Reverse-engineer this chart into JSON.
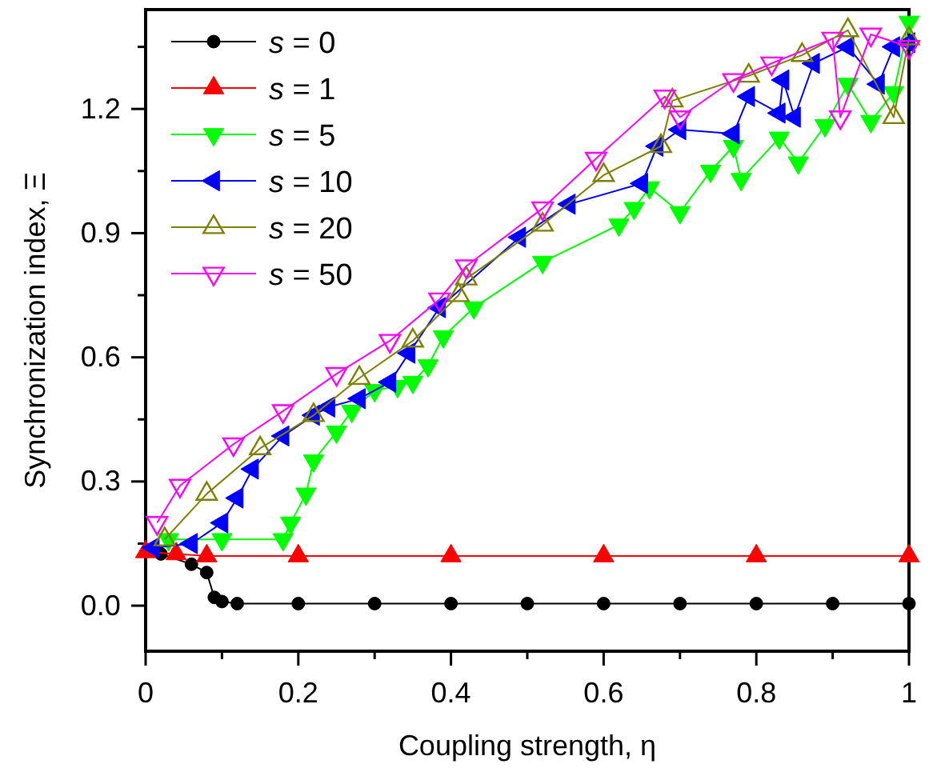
{
  "chart_data": {
    "type": "line",
    "xlabel": "Coupling strength, η",
    "ylabel": "Synchronization index, Ξ",
    "xlim": [
      0,
      1
    ],
    "ylim": [
      -0.11,
      1.44
    ],
    "xticks": [
      0,
      {
        "value": 0.1,
        "label": null
      },
      0.2,
      {
        "value": 0.3,
        "label": null
      },
      0.4,
      {
        "value": 0.5,
        "label": null
      },
      0.6,
      {
        "value": 0.7,
        "label": null
      },
      0.8,
      {
        "value": 0.9,
        "label": null
      },
      1
    ],
    "yticks": [
      {
        "value": 0,
        "label": "0.0"
      },
      {
        "value": 0.15,
        "label": null
      },
      0.3,
      {
        "value": 0.45,
        "label": null
      },
      0.6,
      {
        "value": 0.75,
        "label": null
      },
      0.9,
      {
        "value": 1.05,
        "label": null
      },
      1.2,
      {
        "value": 1.35,
        "label": null
      }
    ],
    "legend": "top left",
    "grid": false,
    "line_style": "solid",
    "series": [
      {
        "name": "s = 0",
        "color": "#000000",
        "marker": "circle",
        "x": [
          0.02,
          0.06,
          0.08,
          0.09,
          0.1,
          0.12,
          0.2,
          0.3,
          0.4,
          0.5,
          0.6,
          0.7,
          0.8,
          0.9,
          1
        ],
        "values": [
          0.125,
          0.1,
          0.08,
          0.02,
          0.01,
          0.005,
          0.005,
          0.005,
          0.005,
          0.005,
          0.005,
          0.005,
          0.005,
          0.005,
          0.005
        ]
      },
      {
        "name": "s = 1",
        "color": "#ff0000",
        "marker": "triangle",
        "x": [
          0,
          0.04,
          0.08,
          0.2,
          0.4,
          0.6,
          0.8,
          1
        ],
        "values": [
          0.13,
          0.125,
          0.12,
          0.12,
          0.12,
          0.12,
          0.12,
          0.12
        ]
      },
      {
        "name": "s = 5",
        "color": "#00ff00",
        "marker": "triangle-down",
        "x": [
          0.03,
          0.1,
          0.18,
          0.19,
          0.21,
          0.22,
          0.25,
          0.27,
          0.3,
          0.33,
          0.35,
          0.37,
          0.39,
          0.43,
          0.52,
          0.62,
          0.64,
          0.66,
          0.7,
          0.74,
          0.77,
          0.78,
          0.83,
          0.855,
          0.89,
          0.92,
          0.95,
          0.98,
          1
        ],
        "values": [
          0.16,
          0.16,
          0.16,
          0.2,
          0.27,
          0.35,
          0.42,
          0.47,
          0.52,
          0.53,
          0.54,
          0.58,
          0.65,
          0.72,
          0.83,
          0.92,
          0.96,
          1.01,
          0.95,
          1.05,
          1.11,
          1.03,
          1.13,
          1.07,
          1.16,
          1.26,
          1.17,
          1.24,
          1.41
        ]
      },
      {
        "name": "s = 10",
        "color": "#0000ff",
        "marker": "triangle-left",
        "x": [
          0.01,
          0.06,
          0.1,
          0.12,
          0.14,
          0.18,
          0.22,
          0.24,
          0.28,
          0.32,
          0.345,
          0.385,
          0.49,
          0.555,
          0.65,
          0.67,
          0.7,
          0.77,
          0.79,
          0.83,
          0.835,
          0.85,
          0.875,
          0.92,
          0.96,
          0.98,
          1
        ],
        "values": [
          0.14,
          0.15,
          0.2,
          0.26,
          0.33,
          0.41,
          0.46,
          0.48,
          0.5,
          0.54,
          0.61,
          0.72,
          0.89,
          0.97,
          1.02,
          1.11,
          1.15,
          1.14,
          1.23,
          1.19,
          1.27,
          1.18,
          1.31,
          1.35,
          1.26,
          1.35,
          1.36
        ]
      },
      {
        "name": "s = 20",
        "color": "#808000",
        "marker": "triangle-open",
        "x": [
          0.025,
          0.08,
          0.15,
          0.22,
          0.28,
          0.35,
          0.41,
          0.42,
          0.52,
          0.6,
          0.675,
          0.69,
          0.79,
          0.86,
          0.92,
          0.98,
          1
        ],
        "values": [
          0.16,
          0.27,
          0.38,
          0.46,
          0.55,
          0.64,
          0.75,
          0.79,
          0.92,
          1.04,
          1.11,
          1.22,
          1.28,
          1.33,
          1.39,
          1.18,
          1.37
        ]
      },
      {
        "name": "s = 50",
        "color": "#ff00ff",
        "marker": "triangle-down-open",
        "x": [
          0.015,
          0.045,
          0.115,
          0.18,
          0.25,
          0.32,
          0.385,
          0.42,
          0.52,
          0.59,
          0.68,
          0.7,
          0.77,
          0.82,
          0.9,
          0.91,
          0.95,
          1
        ],
        "values": [
          0.2,
          0.29,
          0.39,
          0.47,
          0.56,
          0.64,
          0.74,
          0.82,
          0.96,
          1.08,
          1.23,
          1.18,
          1.27,
          1.31,
          1.37,
          1.18,
          1.38,
          1.35
        ]
      }
    ]
  }
}
